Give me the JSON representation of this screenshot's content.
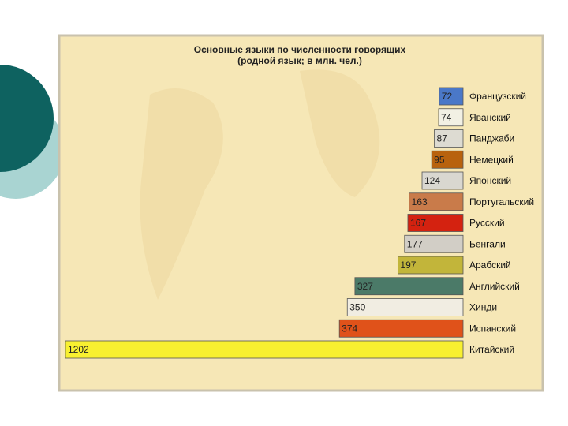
{
  "chart_data": {
    "type": "bar",
    "orientation": "horizontal",
    "title": "Основные языки по численности говорящих",
    "subtitle": "(родной язык; в млн. чел.)",
    "categories": [
      "Французский",
      "Яванский",
      "Панджаби",
      "Немецкий",
      "Японский",
      "Португальский",
      "Русский",
      "Бенгали",
      "Арабский",
      "Английский",
      "Хинди",
      "Испанский",
      "Китайский"
    ],
    "values": [
      72,
      74,
      87,
      95,
      124,
      163,
      167,
      177,
      197,
      327,
      350,
      374,
      1202
    ],
    "colors": [
      "#4a78c8",
      "#f2f0e4",
      "#dddbd2",
      "#b8620e",
      "#d9d7d0",
      "#c97b4a",
      "#d42210",
      "#d2cec6",
      "#c2b53a",
      "#4b7a68",
      "#f1ede2",
      "#e0521a",
      "#f8f030"
    ]
  }
}
